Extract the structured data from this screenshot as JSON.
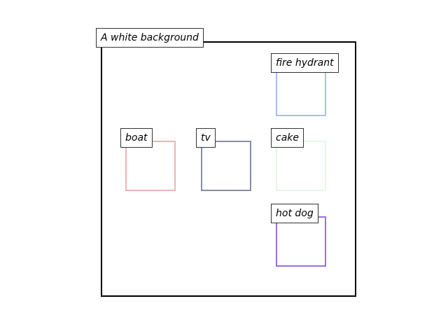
{
  "scene": {
    "caption": "A white background"
  },
  "objects": [
    {
      "key": "fire-hydrant",
      "label": "fire hydrant",
      "color": "#a9bdf3"
    },
    {
      "key": "boat",
      "label": "boat",
      "color": "#eab7b6"
    },
    {
      "key": "tv",
      "label": "tv",
      "color": "#878ca8"
    },
    {
      "key": "cake",
      "label": "cake",
      "color": "#e6f8e4"
    },
    {
      "key": "hot-dog",
      "label": "hot dog",
      "color": "#9a6ee6"
    }
  ]
}
